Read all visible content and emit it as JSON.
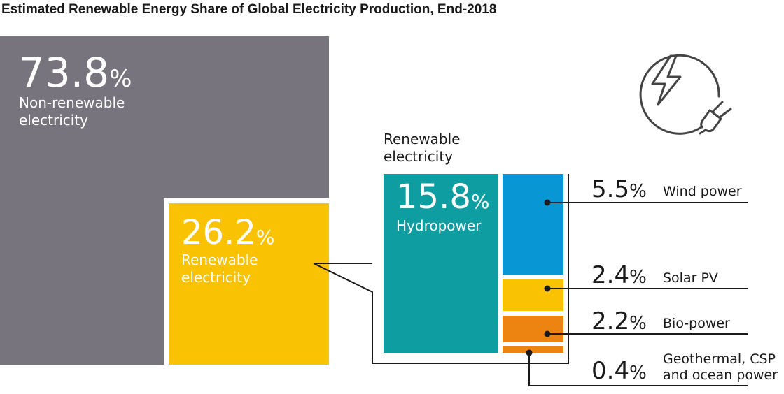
{
  "chart_data": {
    "type": "treemap",
    "title": "Estimated Renewable Energy Share of Global Electricity Production, End-2018",
    "unit": "%",
    "overview": [
      {
        "name_lines": [
          "Non-renewable",
          "electricity"
        ],
        "value": 73.8,
        "color": "#77747d"
      },
      {
        "name_lines": [
          "Renewable",
          "electricity"
        ],
        "value": 26.2,
        "color": "#f9c203"
      }
    ],
    "renewable_label_lines": [
      "Renewable",
      "electricity"
    ],
    "renewable_breakdown": [
      {
        "name_lines": [
          "Hydropower"
        ],
        "value": 15.8,
        "color": "#0e9ea1"
      },
      {
        "name_lines": [
          "Wind power"
        ],
        "value": 5.5,
        "color": "#0896d4"
      },
      {
        "name_lines": [
          "Solar PV"
        ],
        "value": 2.4,
        "color": "#f9c203"
      },
      {
        "name_lines": [
          "Bio-power"
        ],
        "value": 2.2,
        "color": "#ed8311"
      },
      {
        "name_lines": [
          "Geothermal, CSP",
          "and ocean power"
        ],
        "value": 0.4,
        "color": "#ed8311"
      }
    ]
  },
  "icon": "electric-plug-lightning-icon"
}
